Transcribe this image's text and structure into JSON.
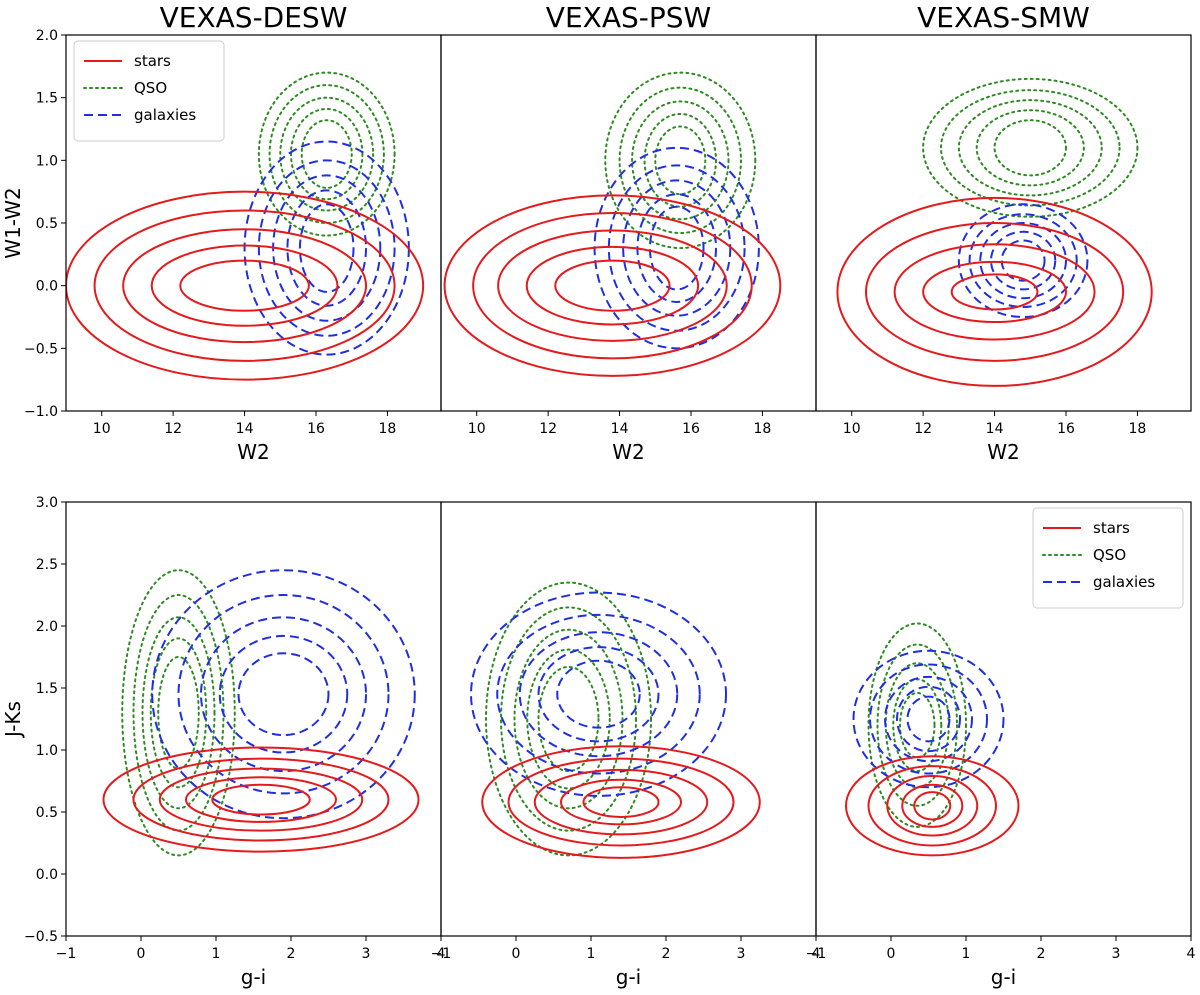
{
  "chart_data": {
    "type": "contour",
    "series_styles": {
      "stars": {
        "color": "#e41a1c",
        "style": "solid"
      },
      "QSO": {
        "color": "#2e8b22",
        "style": "dotted"
      },
      "galaxies": {
        "color": "#1f2fe0",
        "style": "dashed"
      }
    },
    "legend_entries": [
      "stars",
      "QSO",
      "galaxies"
    ],
    "rows": [
      {
        "xlabel": "W2",
        "ylabel": "W1-W2",
        "xlim": [
          9,
          19.5
        ],
        "ylim": [
          -1.0,
          2.0
        ],
        "xticks": [
          "10",
          "12",
          "14",
          "16",
          "18"
        ],
        "xtick_values": [
          10,
          12,
          14,
          16,
          18
        ],
        "yticks": [
          "−1.0",
          "−0.5",
          "0.0",
          "0.5",
          "1.0",
          "1.5",
          "2.0"
        ],
        "ytick_values": [
          -1.0,
          -0.5,
          0.0,
          0.5,
          1.0,
          1.5,
          2.0
        ],
        "legend_position": "top-left",
        "legend_panel": 0,
        "panels": [
          {
            "title": "VEXAS-DESW",
            "contours": [
              {
                "series": "QSO",
                "cx": 16.3,
                "cy": 1.05,
                "levels": [
                  [
                    1.9,
                    0.65
                  ],
                  [
                    1.6,
                    0.55
                  ],
                  [
                    1.3,
                    0.45
                  ],
                  [
                    1.0,
                    0.36
                  ],
                  [
                    0.7,
                    0.27
                  ]
                ]
              },
              {
                "series": "galaxies",
                "cx": 16.3,
                "cy": 0.3,
                "levels": [
                  [
                    2.3,
                    0.85
                  ],
                  [
                    1.9,
                    0.7
                  ],
                  [
                    1.5,
                    0.58
                  ],
                  [
                    1.1,
                    0.46
                  ],
                  [
                    0.75,
                    0.35
                  ]
                ]
              },
              {
                "series": "stars",
                "cx": 14.0,
                "cy": 0.0,
                "levels": [
                  [
                    5.0,
                    0.75
                  ],
                  [
                    4.2,
                    0.6
                  ],
                  [
                    3.4,
                    0.45
                  ],
                  [
                    2.6,
                    0.32
                  ],
                  [
                    1.8,
                    0.2
                  ]
                ]
              }
            ]
          },
          {
            "title": "VEXAS-PSW",
            "contours": [
              {
                "series": "QSO",
                "cx": 15.7,
                "cy": 1.0,
                "levels": [
                  [
                    2.1,
                    0.7
                  ],
                  [
                    1.7,
                    0.58
                  ],
                  [
                    1.35,
                    0.47
                  ],
                  [
                    1.0,
                    0.37
                  ],
                  [
                    0.7,
                    0.27
                  ]
                ]
              },
              {
                "series": "galaxies",
                "cx": 15.6,
                "cy": 0.3,
                "levels": [
                  [
                    2.3,
                    0.8
                  ],
                  [
                    1.9,
                    0.66
                  ],
                  [
                    1.5,
                    0.54
                  ],
                  [
                    1.1,
                    0.43
                  ],
                  [
                    0.75,
                    0.33
                  ]
                ]
              },
              {
                "series": "stars",
                "cx": 13.8,
                "cy": 0.0,
                "levels": [
                  [
                    4.7,
                    0.72
                  ],
                  [
                    3.9,
                    0.58
                  ],
                  [
                    3.2,
                    0.44
                  ],
                  [
                    2.4,
                    0.31
                  ],
                  [
                    1.6,
                    0.2
                  ]
                ]
              }
            ]
          },
          {
            "title": "VEXAS-SMW",
            "contours": [
              {
                "series": "QSO",
                "cx": 15.0,
                "cy": 1.1,
                "levels": [
                  [
                    3.0,
                    0.55
                  ],
                  [
                    2.5,
                    0.46
                  ],
                  [
                    2.0,
                    0.38
                  ],
                  [
                    1.5,
                    0.3
                  ],
                  [
                    1.0,
                    0.22
                  ]
                ]
              },
              {
                "series": "galaxies",
                "cx": 14.8,
                "cy": 0.2,
                "levels": [
                  [
                    1.8,
                    0.45
                  ],
                  [
                    1.5,
                    0.37
                  ],
                  [
                    1.2,
                    0.3
                  ],
                  [
                    0.9,
                    0.23
                  ],
                  [
                    0.6,
                    0.16
                  ]
                ]
              },
              {
                "series": "stars",
                "cx": 14.0,
                "cy": -0.05,
                "levels": [
                  [
                    4.4,
                    0.75
                  ],
                  [
                    3.6,
                    0.55
                  ],
                  [
                    2.8,
                    0.38
                  ],
                  [
                    2.0,
                    0.24
                  ],
                  [
                    1.2,
                    0.14
                  ]
                ]
              }
            ]
          }
        ]
      },
      {
        "xlabel": "g-i",
        "ylabel": "J-Ks",
        "xlim": [
          -1,
          4
        ],
        "ylim": [
          -0.5,
          3.0
        ],
        "xticks": [
          "−1",
          "0",
          "1",
          "2",
          "3",
          "4"
        ],
        "xtick_values": [
          -1,
          0,
          1,
          2,
          3,
          4
        ],
        "yticks": [
          "−0.5",
          "0.0",
          "0.5",
          "1.0",
          "1.5",
          "2.0",
          "2.5",
          "3.0"
        ],
        "ytick_values": [
          -0.5,
          0.0,
          0.5,
          1.0,
          1.5,
          2.0,
          2.5,
          3.0
        ],
        "legend_position": "top-right",
        "legend_panel": 2,
        "panels": [
          {
            "title": "",
            "contours": [
              {
                "series": "QSO",
                "cx": 0.5,
                "cy": 1.3,
                "levels": [
                  [
                    0.75,
                    1.15
                  ],
                  [
                    0.6,
                    0.95
                  ],
                  [
                    0.48,
                    0.77
                  ],
                  [
                    0.37,
                    0.6
                  ],
                  [
                    0.27,
                    0.45
                  ]
                ]
              },
              {
                "series": "galaxies",
                "cx": 1.9,
                "cy": 1.45,
                "levels": [
                  [
                    1.75,
                    1.0
                  ],
                  [
                    1.4,
                    0.8
                  ],
                  [
                    1.1,
                    0.62
                  ],
                  [
                    0.85,
                    0.47
                  ],
                  [
                    0.6,
                    0.33
                  ]
                ]
              },
              {
                "series": "stars",
                "cx": 1.6,
                "cy": 0.6,
                "levels": [
                  [
                    2.1,
                    0.42
                  ],
                  [
                    1.7,
                    0.33
                  ],
                  [
                    1.35,
                    0.25
                  ],
                  [
                    1.0,
                    0.18
                  ],
                  [
                    0.65,
                    0.12
                  ]
                ]
              }
            ]
          },
          {
            "title": "",
            "contours": [
              {
                "series": "QSO",
                "cx": 0.7,
                "cy": 1.25,
                "levels": [
                  [
                    1.1,
                    1.1
                  ],
                  [
                    0.9,
                    0.9
                  ],
                  [
                    0.72,
                    0.72
                  ],
                  [
                    0.55,
                    0.56
                  ],
                  [
                    0.4,
                    0.42
                  ]
                ]
              },
              {
                "series": "galaxies",
                "cx": 1.1,
                "cy": 1.45,
                "levels": [
                  [
                    1.7,
                    0.82
                  ],
                  [
                    1.35,
                    0.64
                  ],
                  [
                    1.05,
                    0.5
                  ],
                  [
                    0.8,
                    0.38
                  ],
                  [
                    0.55,
                    0.27
                  ]
                ]
              },
              {
                "series": "stars",
                "cx": 1.4,
                "cy": 0.58,
                "levels": [
                  [
                    1.85,
                    0.45
                  ],
                  [
                    1.5,
                    0.35
                  ],
                  [
                    1.15,
                    0.26
                  ],
                  [
                    0.8,
                    0.18
                  ],
                  [
                    0.5,
                    0.12
                  ]
                ]
              }
            ]
          },
          {
            "title": "",
            "contours": [
              {
                "series": "QSO",
                "cx": 0.35,
                "cy": 1.2,
                "levels": [
                  [
                    0.65,
                    0.82
                  ],
                  [
                    0.53,
                    0.65
                  ],
                  [
                    0.42,
                    0.5
                  ],
                  [
                    0.32,
                    0.37
                  ],
                  [
                    0.23,
                    0.26
                  ]
                ]
              },
              {
                "series": "galaxies",
                "cx": 0.5,
                "cy": 1.25,
                "levels": [
                  [
                    1.0,
                    0.55
                  ],
                  [
                    0.78,
                    0.44
                  ],
                  [
                    0.58,
                    0.34
                  ],
                  [
                    0.42,
                    0.26
                  ],
                  [
                    0.28,
                    0.18
                  ]
                ]
              },
              {
                "series": "stars",
                "cx": 0.55,
                "cy": 0.55,
                "levels": [
                  [
                    1.15,
                    0.4
                  ],
                  [
                    0.85,
                    0.32
                  ],
                  [
                    0.6,
                    0.24
                  ],
                  [
                    0.4,
                    0.17
                  ],
                  [
                    0.24,
                    0.11
                  ]
                ]
              }
            ]
          }
        ]
      }
    ]
  }
}
